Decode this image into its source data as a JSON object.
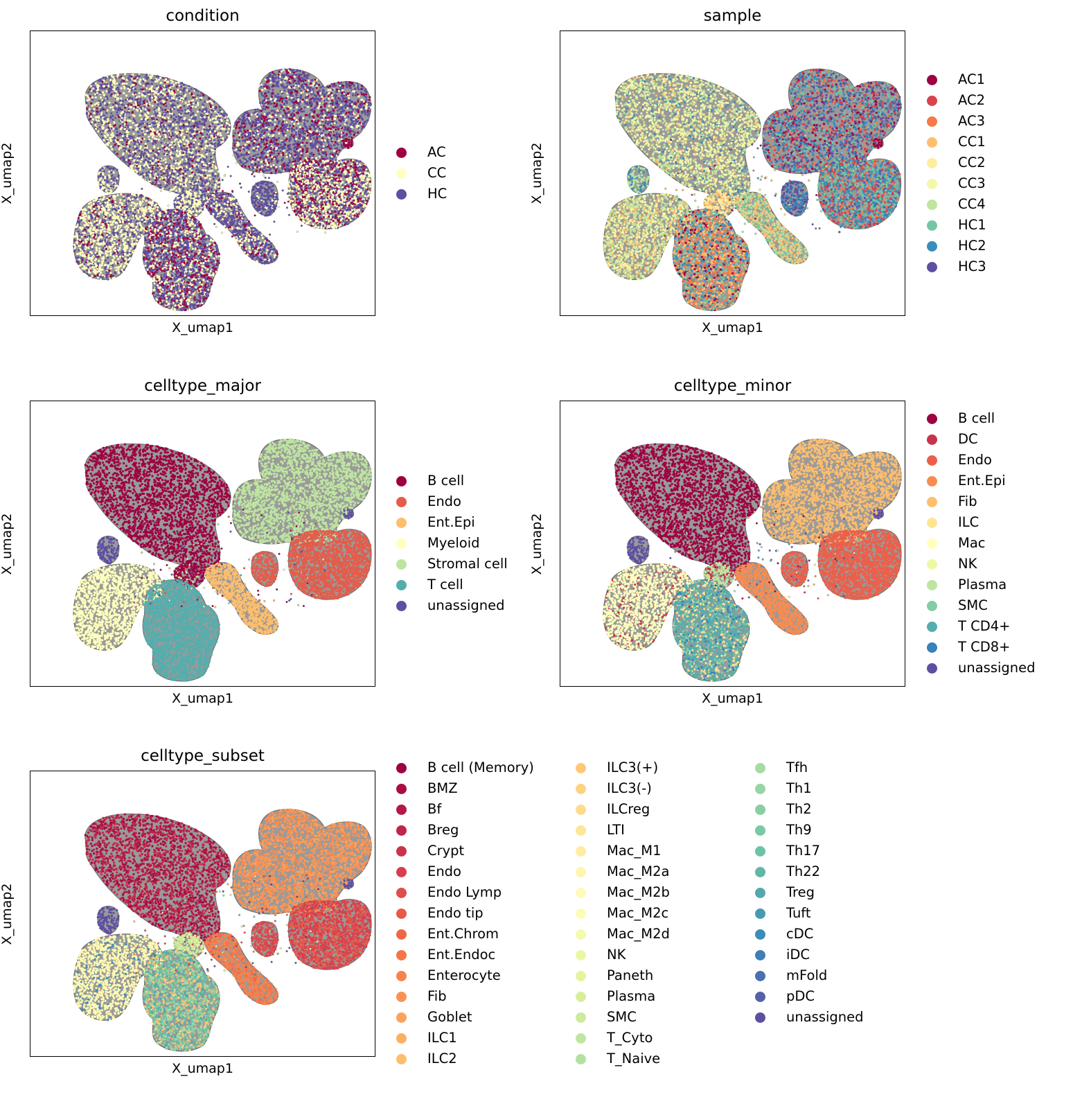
{
  "chart_data": [
    {
      "type": "scatter",
      "title": "condition",
      "xlabel": "X_umap1",
      "ylabel": "X_umap2",
      "legend_position": "right",
      "categories": [
        {
          "name": "AC",
          "color": "#9e0142"
        },
        {
          "name": "CC",
          "color": "#ffffbf"
        },
        {
          "name": "HC",
          "color": "#5e4fa2"
        }
      ]
    },
    {
      "type": "scatter",
      "title": "sample",
      "xlabel": "X_umap1",
      "ylabel": "X_umap2",
      "legend_position": "right",
      "categories": [
        {
          "name": "AC1",
          "color": "#9e0142"
        },
        {
          "name": "AC2",
          "color": "#d8434e"
        },
        {
          "name": "AC3",
          "color": "#f67a49"
        },
        {
          "name": "CC1",
          "color": "#fdbf6f"
        },
        {
          "name": "CC2",
          "color": "#feeda1"
        },
        {
          "name": "CC3",
          "color": "#f1f9a9"
        },
        {
          "name": "CC4",
          "color": "#bfe5a0"
        },
        {
          "name": "HC1",
          "color": "#74c7a5"
        },
        {
          "name": "HC2",
          "color": "#378ebb"
        },
        {
          "name": "HC3",
          "color": "#5e4fa2"
        }
      ]
    },
    {
      "type": "scatter",
      "title": "celltype_major",
      "xlabel": "X_umap1",
      "ylabel": "X_umap2",
      "legend_position": "right",
      "categories": [
        {
          "name": "B cell",
          "color": "#9e0142"
        },
        {
          "name": "Endo",
          "color": "#e45c4a"
        },
        {
          "name": "Ent.Epi",
          "color": "#fdbe6e"
        },
        {
          "name": "Myeloid",
          "color": "#ffffbe"
        },
        {
          "name": "Stromal cell",
          "color": "#bee5a0"
        },
        {
          "name": "T cell",
          "color": "#54aead"
        },
        {
          "name": "unassigned",
          "color": "#5e4fa2"
        }
      ]
    },
    {
      "type": "scatter",
      "title": "celltype_minor",
      "xlabel": "X_umap1",
      "ylabel": "X_umap2",
      "legend_position": "right",
      "categories": [
        {
          "name": "B cell",
          "color": "#9e0142"
        },
        {
          "name": "DC",
          "color": "#ca324c"
        },
        {
          "name": "Endo",
          "color": "#ec5f4a"
        },
        {
          "name": "Ent.Epi",
          "color": "#f88c51"
        },
        {
          "name": "Fib",
          "color": "#fdbe6e"
        },
        {
          "name": "ILC",
          "color": "#fee593"
        },
        {
          "name": "Mac",
          "color": "#ffffbe"
        },
        {
          "name": "NK",
          "color": "#eff8a6"
        },
        {
          "name": "Plasma",
          "color": "#bee5a0"
        },
        {
          "name": "SMC",
          "color": "#82cda5"
        },
        {
          "name": "T CD4+",
          "color": "#54aead"
        },
        {
          "name": "T CD8+",
          "color": "#3682ba"
        },
        {
          "name": "unassigned",
          "color": "#5e4fa2"
        }
      ]
    },
    {
      "type": "scatter",
      "title": "celltype_subset",
      "xlabel": "X_umap1",
      "ylabel": "X_umap2",
      "legend_position": "right",
      "categories": [
        {
          "name": "B cell (Memory)",
          "color": "#9e0142"
        },
        {
          "name": "BMZ",
          "color": "#a90d44"
        },
        {
          "name": "Bf",
          "color": "#b41947"
        },
        {
          "name": "Breg",
          "color": "#c0264a"
        },
        {
          "name": "Crypt",
          "color": "#cb334d"
        },
        {
          "name": "Endo",
          "color": "#d6404e"
        },
        {
          "name": "Endo Lymp",
          "color": "#e04d4a"
        },
        {
          "name": "Endo tip",
          "color": "#e85a47"
        },
        {
          "name": "Ent.Chrom",
          "color": "#f06744"
        },
        {
          "name": "Ent.Endoc",
          "color": "#f57547"
        },
        {
          "name": "Enterocyte",
          "color": "#f7844e"
        },
        {
          "name": "Fib",
          "color": "#f99355"
        },
        {
          "name": "Goblet",
          "color": "#fba35c"
        },
        {
          "name": "ILC1",
          "color": "#fcb064"
        },
        {
          "name": "ILC2",
          "color": "#fdbe6e"
        },
        {
          "name": "ILC3(+)",
          "color": "#fdc978"
        },
        {
          "name": "ILC3(-)",
          "color": "#fed283"
        },
        {
          "name": "ILCreg",
          "color": "#fedb8e"
        },
        {
          "name": "LTI",
          "color": "#fee599"
        },
        {
          "name": "Mac_M1",
          "color": "#feeda3"
        },
        {
          "name": "Mac_M2a",
          "color": "#fff5ad"
        },
        {
          "name": "Mac_M2b",
          "color": "#fffab6"
        },
        {
          "name": "Mac_M2c",
          "color": "#fbfdb7"
        },
        {
          "name": "Mac_M2d",
          "color": "#f4faaf"
        },
        {
          "name": "NK",
          "color": "#ecf7a5"
        },
        {
          "name": "Paneth",
          "color": "#e3f49b"
        },
        {
          "name": "Plasma",
          "color": "#d8ef9a"
        },
        {
          "name": "SMC",
          "color": "#cdea9d"
        },
        {
          "name": "T_Cyto",
          "color": "#c1e6a0"
        },
        {
          "name": "T_Naive",
          "color": "#b4e1a2"
        },
        {
          "name": "Tfh",
          "color": "#a6dba4"
        },
        {
          "name": "Th1",
          "color": "#97d5a4"
        },
        {
          "name": "Th2",
          "color": "#88cfa4"
        },
        {
          "name": "Th9",
          "color": "#79c9a5"
        },
        {
          "name": "Th17",
          "color": "#6bc3a5"
        },
        {
          "name": "Th22",
          "color": "#5fb6a9"
        },
        {
          "name": "Treg",
          "color": "#53a8ad"
        },
        {
          "name": "Tuft",
          "color": "#469bb2"
        },
        {
          "name": "cDC",
          "color": "#3a8db7"
        },
        {
          "name": "iDC",
          "color": "#3f7fb6"
        },
        {
          "name": "mFold",
          "color": "#4a71b0"
        },
        {
          "name": "pDC",
          "color": "#5463a9"
        },
        {
          "name": "unassigned",
          "color": "#5e4fa2"
        }
      ]
    }
  ]
}
